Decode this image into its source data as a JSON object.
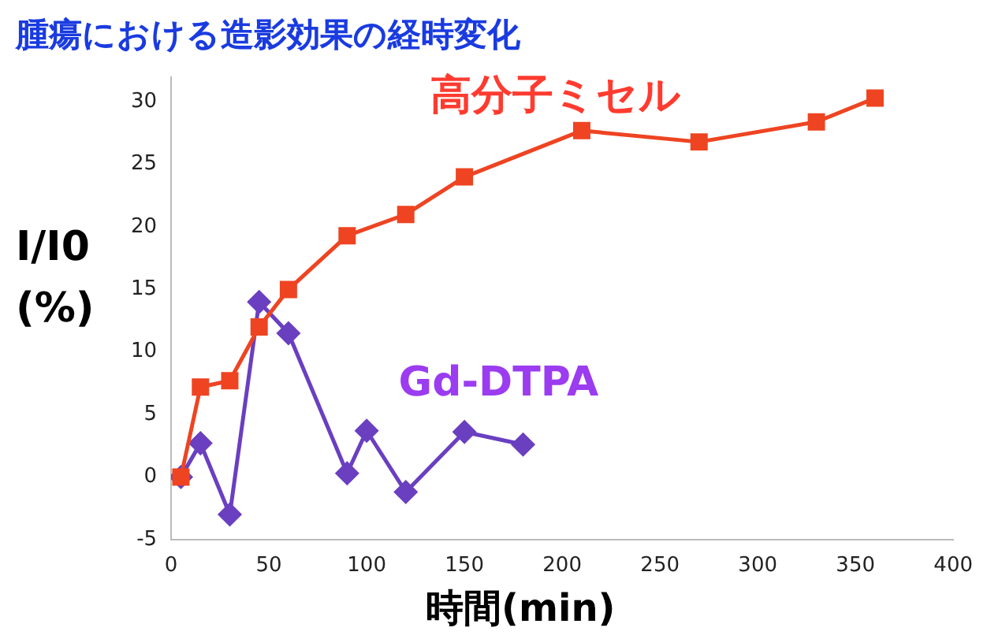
{
  "chart_data": {
    "type": "line",
    "title": "腫瘍における造影効果の経時変化",
    "xlabel": "時間(min)",
    "ylabel": "I/I0\n(%)",
    "xlim": [
      0,
      400
    ],
    "xticks": [
      0,
      50,
      100,
      150,
      200,
      250,
      300,
      350,
      400
    ],
    "ylim": [
      -5,
      32
    ],
    "yticks": [
      -5,
      0,
      5,
      10,
      15,
      20,
      25,
      30
    ],
    "grid": false,
    "legend": false,
    "series": [
      {
        "name": "高分子ミセル",
        "color": "#ee4422",
        "marker": "square",
        "x": [
          5,
          15,
          30,
          45,
          60,
          90,
          120,
          150,
          210,
          270,
          330,
          360
        ],
        "values": [
          0,
          7.2,
          7.7,
          12,
          15,
          19.3,
          21,
          24,
          27.7,
          26.8,
          28.4,
          30.3
        ]
      },
      {
        "name": "Gd-DTPA",
        "color": "#6a3fc0",
        "marker": "diamond",
        "x": [
          5,
          15,
          30,
          45,
          60,
          90,
          100,
          120,
          150,
          180
        ],
        "values": [
          0,
          2.7,
          -3,
          14,
          11.5,
          0.3,
          3.7,
          -1.2,
          3.6,
          2.6
        ]
      }
    ]
  }
}
